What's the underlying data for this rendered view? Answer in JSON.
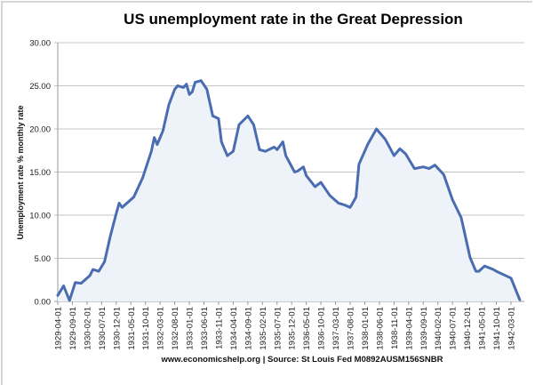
{
  "chart_data": {
    "type": "area",
    "title": "US unemployment rate in the Great Depression",
    "xlabel": "",
    "ylabel": "Unemployment rate % monthly rate",
    "source": "www.economicshelp.org | Source: St Louis Fed M0892AUSM156SNBR",
    "ylim": [
      0,
      30
    ],
    "yticks": [
      "0.00",
      "5.00",
      "10.00",
      "15.00",
      "20.00",
      "25.00",
      "30.00"
    ],
    "xticks": [
      "1929-04-01",
      "1929-09-01",
      "1930-02-01",
      "1930-07-01",
      "1930-12-01",
      "1931-05-01",
      "1931-10-01",
      "1932-03-01",
      "1932-08-01",
      "1933-01-01",
      "1933-06-01",
      "1933-11-01",
      "1934-04-01",
      "1934-09-01",
      "1935-02-01",
      "1935-07-01",
      "1935-12-01",
      "1936-05-01",
      "1936-10-01",
      "1937-03-01",
      "1937-08-01",
      "1938-01-01",
      "1938-06-01",
      "1938-11-01",
      "1939-04-01",
      "1939-09-01",
      "1940-02-01",
      "1940-07-01",
      "1940-12-01",
      "1941-05-01",
      "1941-10-01",
      "1942-03-01"
    ],
    "grid": "horizontal",
    "line_color": "#4a6cb0",
    "fill_color": "#eef2f9",
    "x": [
      "1929-04",
      "1929-06",
      "1929-08",
      "1929-10",
      "1929-12",
      "1930-03",
      "1930-04",
      "1930-06",
      "1930-08",
      "1930-10",
      "1930-12",
      "1931-01",
      "1931-02",
      "1931-04",
      "1931-06",
      "1931-09",
      "1931-12",
      "1932-01",
      "1932-02",
      "1932-04",
      "1932-06",
      "1932-08",
      "1932-09",
      "1932-11",
      "1932-12",
      "1933-01",
      "1933-02",
      "1933-03",
      "1933-05",
      "1933-07",
      "1933-09",
      "1933-11",
      "1933-12",
      "1934-02",
      "1934-04",
      "1934-06",
      "1934-09",
      "1934-11",
      "1935-01",
      "1935-03",
      "1935-06",
      "1935-07",
      "1935-09",
      "1935-10",
      "1936-01",
      "1936-02",
      "1936-04",
      "1936-05",
      "1936-08",
      "1936-10",
      "1937-01",
      "1937-04",
      "1937-06",
      "1937-08",
      "1937-10",
      "1937-11",
      "1938-02",
      "1938-05",
      "1938-08",
      "1938-11",
      "1939-01",
      "1939-03",
      "1939-06",
      "1939-09",
      "1939-11",
      "1940-01",
      "1940-04",
      "1940-07",
      "1940-10",
      "1941-01",
      "1941-03",
      "1941-04",
      "1941-06",
      "1941-09",
      "1941-10",
      "1942-03",
      "1942-06"
    ],
    "values": [
      0.7,
      1.8,
      0.1,
      2.2,
      2.1,
      3.0,
      3.7,
      3.5,
      4.6,
      7.6,
      10.2,
      11.4,
      10.9,
      11.5,
      12.1,
      14.3,
      17.4,
      19.0,
      18.2,
      19.8,
      22.8,
      24.6,
      25.0,
      24.8,
      25.2,
      24.0,
      24.3,
      25.4,
      25.6,
      24.6,
      21.5,
      21.2,
      18.5,
      16.9,
      17.4,
      20.5,
      21.5,
      20.5,
      17.6,
      17.4,
      17.9,
      17.6,
      18.5,
      16.9,
      15.0,
      15.1,
      15.6,
      14.6,
      13.3,
      13.8,
      12.3,
      11.4,
      11.2,
      10.9,
      12.1,
      15.9,
      18.2,
      20.0,
      18.8,
      16.9,
      17.7,
      17.1,
      15.4,
      15.6,
      15.4,
      15.8,
      14.7,
      11.8,
      9.7,
      5.1,
      3.5,
      3.5,
      4.1,
      3.7,
      3.5,
      2.7,
      0.2
    ]
  }
}
